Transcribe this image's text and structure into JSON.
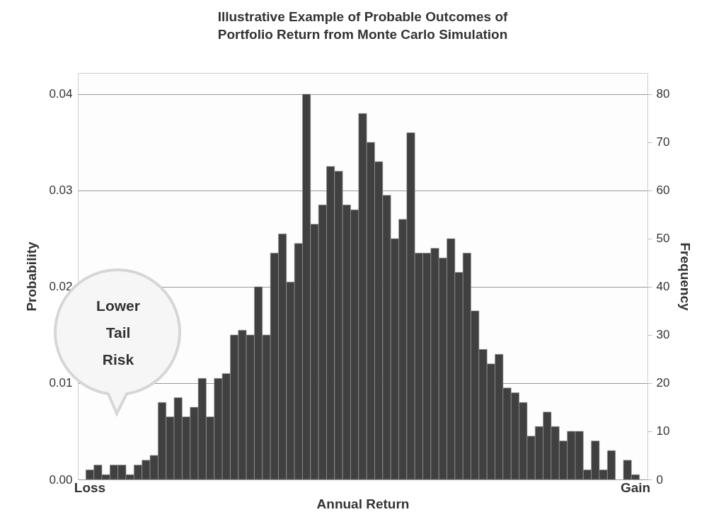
{
  "chart_data": {
    "type": "bar",
    "title": "Illustrative Example of Probable Outcomes of\nPortfolio Return from Monte Carlo Simulation",
    "xlabel": "Annual Return",
    "ylabel": "Probability",
    "y2label": "Frequency",
    "categories": [
      "Loss",
      null,
      null,
      null,
      null,
      null,
      null,
      null,
      null,
      null,
      null,
      null,
      null,
      null,
      null,
      null,
      null,
      null,
      null,
      null,
      null,
      null,
      null,
      null,
      null,
      null,
      null,
      null,
      null,
      null,
      null,
      null,
      null,
      null,
      null,
      null,
      null,
      null,
      null,
      null,
      null,
      null,
      null,
      null,
      null,
      null,
      null,
      null,
      null,
      null,
      null,
      null,
      null,
      null,
      null,
      null,
      null,
      null,
      null,
      null,
      null,
      null,
      null,
      null,
      null,
      null,
      null,
      null,
      "Gain"
    ],
    "values": [
      0.001,
      0.0015,
      0.0005,
      0.0015,
      0.0015,
      0.0005,
      0.0015,
      0.002,
      0.0025,
      0.008,
      0.0065,
      0.0085,
      0.0065,
      0.0075,
      0.0105,
      0.0065,
      0.0105,
      0.011,
      0.015,
      0.0155,
      0.015,
      0.02,
      0.015,
      0.0235,
      0.0255,
      0.0205,
      0.0245,
      0.04,
      0.0265,
      0.0285,
      0.0325,
      0.032,
      0.0285,
      0.028,
      0.038,
      0.035,
      0.033,
      0.0295,
      0.025,
      0.027,
      0.036,
      0.0235,
      0.0235,
      0.024,
      0.023,
      0.025,
      0.0215,
      0.0235,
      0.0175,
      0.0135,
      0.012,
      0.013,
      0.0095,
      0.009,
      0.008,
      0.0045,
      0.0055,
      0.007,
      0.0055,
      0.004,
      0.005,
      0.005,
      0.001,
      0.004,
      0.001,
      0.003,
      0,
      0.002,
      0.0005
    ],
    "color": "#404040",
    "ylim": [
      0,
      0.0422
    ],
    "yticks": [
      {
        "value": 0,
        "label": "0.00"
      },
      0.01,
      0.02,
      0.03,
      0.04
    ],
    "y2lim": [
      0,
      84.4
    ],
    "y2ticks": [
      0,
      10,
      20,
      30,
      40,
      50,
      60,
      70,
      80
    ],
    "grid": "y",
    "annotations": [
      "Lower Tail Risk"
    ]
  }
}
